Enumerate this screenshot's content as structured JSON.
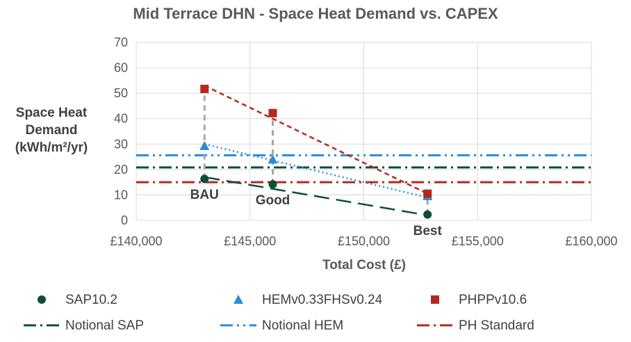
{
  "chart_data": {
    "type": "scatter",
    "title": "Mid Terrace DHN - Space Heat Demand vs. CAPEX",
    "xlabel": "Total Cost (£)",
    "ylabel_lines": [
      "Space Heat",
      "Demand",
      "(kWh/m²/yr)"
    ],
    "xlim": [
      140000,
      160000
    ],
    "ylim": [
      0,
      70
    ],
    "x_ticks": [
      140000,
      145000,
      150000,
      155000,
      160000
    ],
    "x_tick_labels": [
      "£140,000",
      "£145,000",
      "£150,000",
      "£155,000",
      "£160,000"
    ],
    "y_ticks": [
      0,
      10,
      20,
      30,
      40,
      50,
      60,
      70
    ],
    "y_tick_labels": [
      "0",
      "10",
      "20",
      "30",
      "40",
      "50",
      "60",
      "70"
    ],
    "grid": true,
    "legend_position": "bottom",
    "series": [
      {
        "name": "SAP10.2",
        "marker": "circle",
        "color": "#0e4d3c",
        "x": [
          143000,
          146000,
          152800
        ],
        "y": [
          16.3,
          14.2,
          2.3
        ],
        "trend": {
          "x": [
            143000,
            152800
          ],
          "y": [
            17.0,
            2.0
          ],
          "dash": "long"
        }
      },
      {
        "name": "HEMv0.33FHSv0.24",
        "marker": "triangle",
        "color": "#2b8ad6",
        "x": [
          143000,
          146000,
          152800
        ],
        "y": [
          29.3,
          24.0,
          9.6
        ],
        "trend": {
          "x": [
            143000,
            152800
          ],
          "y": [
            30.0,
            9.0
          ],
          "dash": "dot"
        }
      },
      {
        "name": "PHPPv10.6",
        "marker": "square",
        "color": "#b22a1e",
        "x": [
          143000,
          146000,
          152800
        ],
        "y": [
          51.7,
          42.2,
          10.5
        ],
        "trend": {
          "x": [
            143000,
            152800
          ],
          "y": [
            53.0,
            10.5
          ],
          "dash": "short"
        }
      }
    ],
    "reference_lines": [
      {
        "name": "Notional SAP",
        "y": 20.8,
        "color": "#0e4d3c",
        "dash": "dashdot"
      },
      {
        "name": "Notional HEM",
        "y": 25.6,
        "color": "#2b8ad6",
        "dash": "dashdotdot"
      },
      {
        "name": "PH Standard",
        "y": 15.0,
        "color": "#b22a1e",
        "dash": "dashdot"
      }
    ],
    "drop_lines": [
      {
        "x": 143000,
        "y_from": 16.3,
        "y_to": 51.7
      },
      {
        "x": 146000,
        "y_from": 14.2,
        "y_to": 42.2
      },
      {
        "x": 152800,
        "y_from": 2.3,
        "y_to": 10.5
      }
    ],
    "annotations": [
      {
        "text": "BAU",
        "x": 143000,
        "y": 8.5
      },
      {
        "text": "Good",
        "x": 146000,
        "y": 6.3
      },
      {
        "text": "Best",
        "x": 152800,
        "y": -5.8
      }
    ]
  }
}
